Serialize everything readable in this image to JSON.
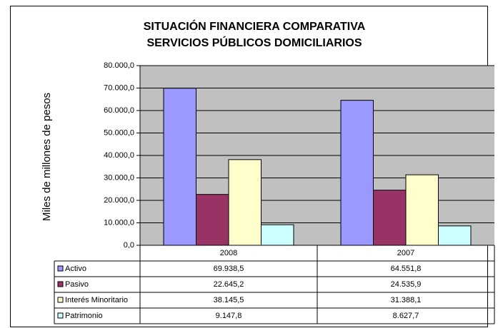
{
  "chart_data": {
    "type": "bar",
    "title": [
      "SITUACIÓN FINANCIERA COMPARATIVA",
      "SERVICIOS PÚBLICOS DOMICILIARIOS"
    ],
    "y_label": "Miles de millones de pesos",
    "categories": [
      "2008",
      "2007"
    ],
    "series": [
      {
        "name": "Activo",
        "color": "#9999ff",
        "values": [
          69938.5,
          64551.8
        ],
        "value_labels": [
          "69.938,5",
          "64.551,8"
        ]
      },
      {
        "name": "Pasivo",
        "color": "#993366",
        "values": [
          22645.2,
          24535.9
        ],
        "value_labels": [
          "22.645,2",
          "24.535,9"
        ]
      },
      {
        "name": "Interés Minoritario",
        "color": "#ffffcc",
        "values": [
          38145.5,
          31388.1
        ],
        "value_labels": [
          "38.145,5",
          "31.388,1"
        ]
      },
      {
        "name": "Patrimonio",
        "color": "#ccffff",
        "values": [
          9147.8,
          8627.7
        ],
        "value_labels": [
          "9.147,8",
          "8.627,7"
        ]
      }
    ],
    "ylim": [
      0,
      80000
    ],
    "yticks": [
      {
        "value": 0,
        "label": "0,0"
      },
      {
        "value": 10000,
        "label": "10.000,0"
      },
      {
        "value": 20000,
        "label": "20.000,0"
      },
      {
        "value": 30000,
        "label": "30.000,0"
      },
      {
        "value": 40000,
        "label": "40.000,0"
      },
      {
        "value": 50000,
        "label": "50.000,0"
      },
      {
        "value": 60000,
        "label": "60.000,0"
      },
      {
        "value": 70000,
        "label": "70.000,0"
      },
      {
        "value": 80000,
        "label": "80.000,0"
      }
    ],
    "grid": true
  }
}
